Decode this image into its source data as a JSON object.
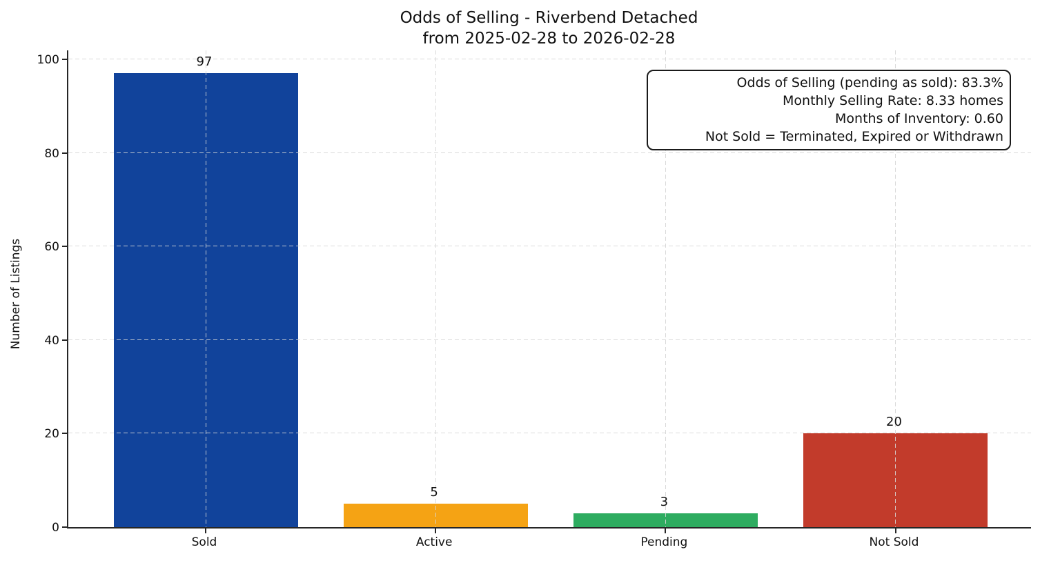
{
  "chart_data": {
    "type": "bar",
    "title": "Odds of Selling - Riverbend Detached",
    "subtitle": "from 2025-02-28 to 2026-02-28",
    "categories": [
      "Sold",
      "Active",
      "Pending",
      "Not Sold"
    ],
    "values": [
      97,
      5,
      3,
      20
    ],
    "bar_colors": [
      "#11439B",
      "#F5A314",
      "#2EAC60",
      "#C23B2B"
    ],
    "xlabel": "",
    "ylabel": "Number of Listings",
    "yticks": [
      0,
      20,
      40,
      60,
      80,
      100
    ],
    "ylim": [
      0,
      102.2
    ],
    "grid": "dashed, both axes, drawn above bars",
    "legend": "none",
    "annotation": {
      "position": "top-right",
      "lines": [
        "Odds of Selling (pending as sold): 83.3%",
        "Monthly Selling Rate: 8.33 homes",
        "Months of Inventory: 0.60",
        "Not Sold = Terminated, Expired or Withdrawn"
      ]
    }
  }
}
